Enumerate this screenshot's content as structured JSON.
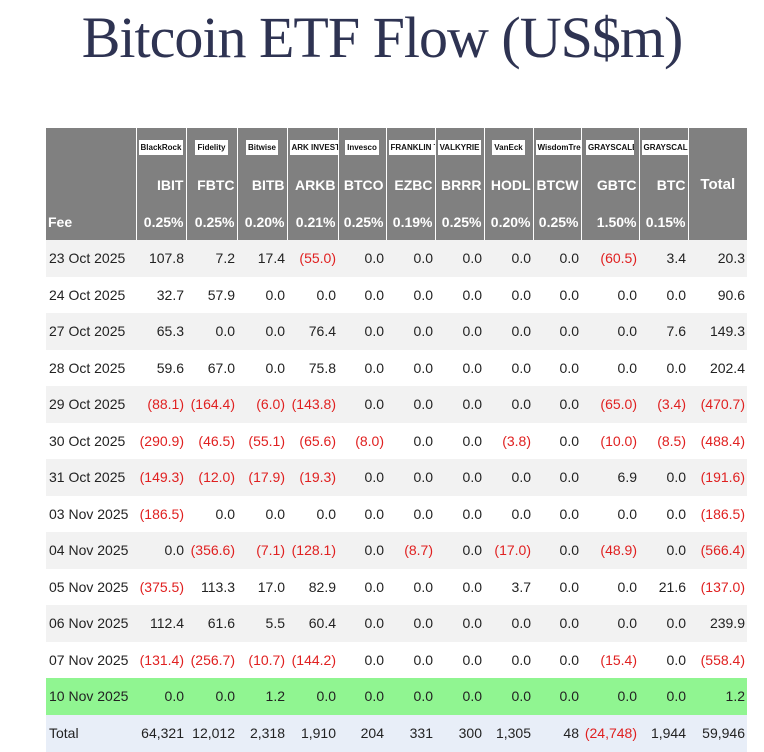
{
  "header": {
    "title": "Bitcoin ETF Flow (US$m)"
  },
  "table": {
    "logos": [
      "BlackRock",
      "Fidelity",
      "Bitwise",
      "ARK INVEST",
      "Invesco",
      "FRANKLIN TEMPLETON",
      "VALKYRIE",
      "VanEck",
      "WisdomTree",
      "GRAYSCALE",
      "GRAYSCALE"
    ],
    "total_label": "Total",
    "tickers": [
      "IBIT",
      "FBTC",
      "BITB",
      "ARKB",
      "BTCO",
      "EZBC",
      "BRRR",
      "HODL",
      "BTCW",
      "GBTC",
      "BTC"
    ],
    "fee_label": "Fee",
    "fees": [
      "0.25%",
      "0.25%",
      "0.20%",
      "0.21%",
      "0.25%",
      "0.19%",
      "0.25%",
      "0.20%",
      "0.25%",
      "1.50%",
      "0.15%"
    ],
    "rows": [
      {
        "date": "23 Oct 2025",
        "values": [
          "107.8",
          "7.2",
          "17.4",
          "(55.0)",
          "0.0",
          "0.0",
          "0.0",
          "0.0",
          "0.0",
          "(60.5)",
          "3.4",
          "20.3"
        ]
      },
      {
        "date": "24 Oct 2025",
        "values": [
          "32.7",
          "57.9",
          "0.0",
          "0.0",
          "0.0",
          "0.0",
          "0.0",
          "0.0",
          "0.0",
          "0.0",
          "0.0",
          "90.6"
        ]
      },
      {
        "date": "27 Oct 2025",
        "values": [
          "65.3",
          "0.0",
          "0.0",
          "76.4",
          "0.0",
          "0.0",
          "0.0",
          "0.0",
          "0.0",
          "0.0",
          "7.6",
          "149.3"
        ]
      },
      {
        "date": "28 Oct 2025",
        "values": [
          "59.6",
          "67.0",
          "0.0",
          "75.8",
          "0.0",
          "0.0",
          "0.0",
          "0.0",
          "0.0",
          "0.0",
          "0.0",
          "202.4"
        ]
      },
      {
        "date": "29 Oct 2025",
        "values": [
          "(88.1)",
          "(164.4)",
          "(6.0)",
          "(143.8)",
          "0.0",
          "0.0",
          "0.0",
          "0.0",
          "0.0",
          "(65.0)",
          "(3.4)",
          "(470.7)"
        ]
      },
      {
        "date": "30 Oct 2025",
        "values": [
          "(290.9)",
          "(46.5)",
          "(55.1)",
          "(65.6)",
          "(8.0)",
          "0.0",
          "0.0",
          "(3.8)",
          "0.0",
          "(10.0)",
          "(8.5)",
          "(488.4)"
        ]
      },
      {
        "date": "31 Oct 2025",
        "values": [
          "(149.3)",
          "(12.0)",
          "(17.9)",
          "(19.3)",
          "0.0",
          "0.0",
          "0.0",
          "0.0",
          "0.0",
          "6.9",
          "0.0",
          "(191.6)"
        ]
      },
      {
        "date": "03 Nov 2025",
        "values": [
          "(186.5)",
          "0.0",
          "0.0",
          "0.0",
          "0.0",
          "0.0",
          "0.0",
          "0.0",
          "0.0",
          "0.0",
          "0.0",
          "(186.5)"
        ]
      },
      {
        "date": "04 Nov 2025",
        "values": [
          "0.0",
          "(356.6)",
          "(7.1)",
          "(128.1)",
          "0.0",
          "(8.7)",
          "0.0",
          "(17.0)",
          "0.0",
          "(48.9)",
          "0.0",
          "(566.4)"
        ]
      },
      {
        "date": "05 Nov 2025",
        "values": [
          "(375.5)",
          "113.3",
          "17.0",
          "82.9",
          "0.0",
          "0.0",
          "0.0",
          "3.7",
          "0.0",
          "0.0",
          "21.6",
          "(137.0)"
        ]
      },
      {
        "date": "06 Nov 2025",
        "values": [
          "112.4",
          "61.6",
          "5.5",
          "60.4",
          "0.0",
          "0.0",
          "0.0",
          "0.0",
          "0.0",
          "0.0",
          "0.0",
          "239.9"
        ]
      },
      {
        "date": "07 Nov 2025",
        "values": [
          "(131.4)",
          "(256.7)",
          "(10.7)",
          "(144.2)",
          "0.0",
          "0.0",
          "0.0",
          "0.0",
          "0.0",
          "(15.4)",
          "0.0",
          "(558.4)"
        ]
      },
      {
        "date": "10 Nov 2025",
        "values": [
          "0.0",
          "0.0",
          "1.2",
          "0.0",
          "0.0",
          "0.0",
          "0.0",
          "0.0",
          "0.0",
          "0.0",
          "0.0",
          "1.2"
        ]
      }
    ],
    "total_row": {
      "label": "Total",
      "values": [
        "64,321",
        "12,012",
        "2,318",
        "1,910",
        "204",
        "331",
        "300",
        "1,305",
        "48",
        "(24,748)",
        "1,944",
        "59,946"
      ]
    }
  }
}
